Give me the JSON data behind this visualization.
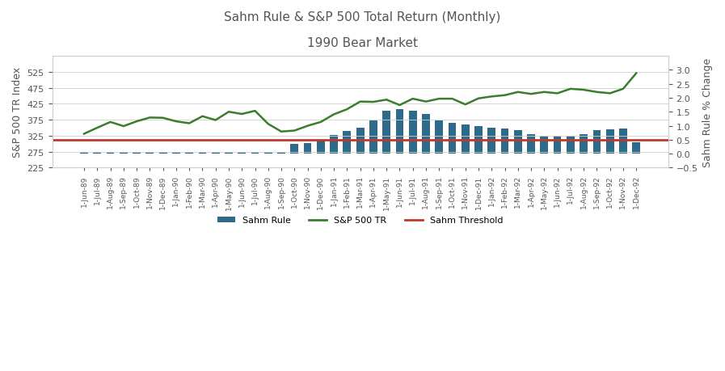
{
  "title_line1": "Sahm Rule & S&P 500 Total Return (Monthly)",
  "title_line2": "1990 Bear Market",
  "ylabel_left": "S&P 500 TR Index",
  "ylabel_right": "Sahm Rule % Change",
  "sahm_threshold": 0.5,
  "x_labels": [
    "1-Jun-89",
    "1-Jul-89",
    "1-Aug-89",
    "1-Sep-89",
    "1-Oct-89",
    "1-Nov-89",
    "1-Dec-89",
    "1-Jan-90",
    "1-Feb-90",
    "1-Mar-90",
    "1-Apr-90",
    "1-May-90",
    "1-Jun-90",
    "1-Jul-90",
    "1-Aug-90",
    "1-Sep-90",
    "1-Oct-90",
    "1-Nov-90",
    "1-Dec-90",
    "1-Jan-91",
    "1-Feb-91",
    "1-Mar-91",
    "1-Apr-91",
    "1-May-91",
    "1-Jun-91",
    "1-Jul-91",
    "1-Aug-91",
    "1-Sep-91",
    "1-Oct-91",
    "1-Nov-91",
    "1-Dec-91",
    "1-Jan-92",
    "1-Feb-92",
    "1-Mar-92",
    "1-Apr-92",
    "1-May-92",
    "1-Jun-92",
    "1-Jul-92",
    "1-Aug-92",
    "1-Sep-92",
    "1-Oct-92",
    "1-Nov-92",
    "1-Dec-92"
  ],
  "sp500_tr": [
    331,
    350,
    368,
    355,
    370,
    382,
    381,
    370,
    364,
    386,
    374,
    400,
    393,
    403,
    362,
    338,
    341,
    356,
    368,
    392,
    408,
    432,
    431,
    438,
    421,
    441,
    432,
    441,
    441,
    423,
    442,
    448,
    452,
    462,
    456,
    462,
    458,
    472,
    469,
    462,
    458,
    472,
    521
  ],
  "sahm_rule": [
    0.07,
    0.07,
    0.07,
    0.07,
    0.07,
    0.07,
    0.07,
    0.07,
    0.07,
    0.07,
    0.07,
    0.07,
    0.07,
    0.07,
    0.07,
    0.07,
    0.35,
    0.37,
    0.5,
    0.68,
    0.82,
    0.93,
    1.2,
    1.55,
    1.6,
    1.55,
    1.43,
    1.2,
    1.1,
    1.05,
    1.0,
    0.93,
    0.9,
    0.85,
    0.7,
    0.65,
    0.63,
    0.65,
    0.7,
    0.85,
    0.87,
    0.9,
    0.42
  ],
  "sp500_color": "#3a7d2c",
  "sahm_bar_color": "#2e6b8a",
  "threshold_color": "#c0392b",
  "ylim_left": [
    225,
    575
  ],
  "ylim_right": [
    -0.5,
    3.5
  ],
  "yticks_left": [
    225,
    275,
    325,
    375,
    425,
    475,
    525
  ],
  "yticks_right": [
    -0.5,
    0.0,
    0.5,
    1.0,
    1.5,
    2.0,
    2.5,
    3.0
  ],
  "background_color": "#ffffff",
  "grid_color": "#d0d0d0",
  "title_color": "#555555",
  "label_color": "#555555"
}
